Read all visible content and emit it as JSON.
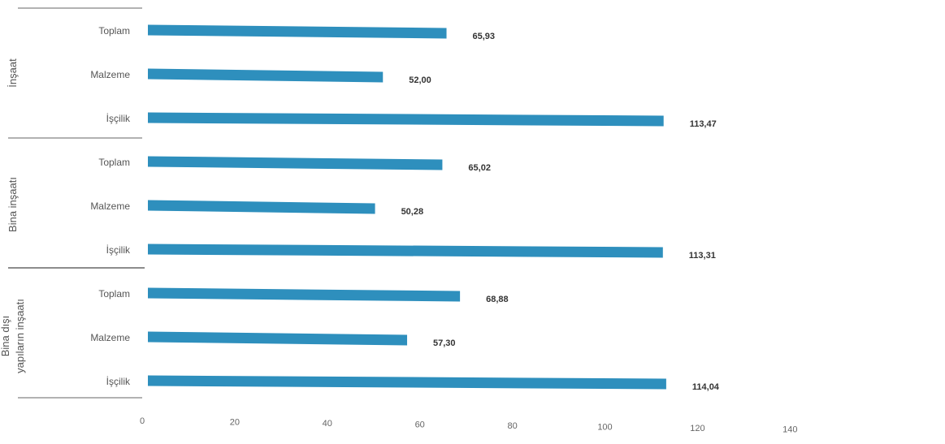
{
  "colors": {
    "bar": "#2e8fbd",
    "separator": "#666666"
  },
  "chart_data": {
    "type": "bar",
    "orientation": "horizontal",
    "xlim": [
      0,
      140
    ],
    "x_ticks": [
      0,
      20,
      40,
      60,
      80,
      100,
      120,
      140
    ],
    "grid": false,
    "groups": [
      {
        "label_lines": [
          "İnşaat"
        ],
        "bars": [
          {
            "label": "Toplam",
            "value": 65.93,
            "value_text": "65,93"
          },
          {
            "label": "Malzeme",
            "value": 52.0,
            "value_text": "52,00"
          },
          {
            "label": "İşçilik",
            "value": 113.47,
            "value_text": "113,47"
          }
        ]
      },
      {
        "label_lines": [
          "Bina inşaatı"
        ],
        "bars": [
          {
            "label": "Toplam",
            "value": 65.02,
            "value_text": "65,02"
          },
          {
            "label": "Malzeme",
            "value": 50.28,
            "value_text": "50,28"
          },
          {
            "label": "İşçilik",
            "value": 113.31,
            "value_text": "113,31"
          }
        ]
      },
      {
        "label_lines": [
          "Bina dışı",
          "yapıların inşaatı"
        ],
        "bars": [
          {
            "label": "Toplam",
            "value": 68.88,
            "value_text": "68,88"
          },
          {
            "label": "Malzeme",
            "value": 57.3,
            "value_text": "57,30"
          },
          {
            "label": "İşçilik",
            "value": 114.04,
            "value_text": "114,04"
          }
        ]
      }
    ]
  }
}
